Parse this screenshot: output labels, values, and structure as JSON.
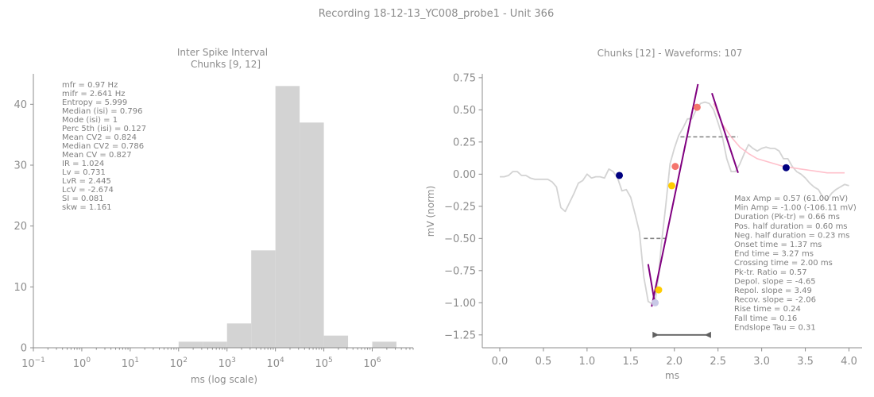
{
  "suptitle": "Recording 18-12-13_YC008_probe1 - Unit 366",
  "chart_data": [
    {
      "type": "bar",
      "title_lines": [
        "Inter Spike Interval",
        "Chunks [9, 12]"
      ],
      "xlabel": "ms (log scale)",
      "ylabel": "",
      "xscale": "log",
      "xlim": [
        0.1,
        7000000
      ],
      "ylim": [
        0,
        45
      ],
      "grid": false,
      "x_ticks": [
        {
          "value": 0.1,
          "base": "10",
          "exp": "−1"
        },
        {
          "value": 1,
          "base": "10",
          "exp": "0"
        },
        {
          "value": 10,
          "base": "10",
          "exp": "1"
        },
        {
          "value": 100,
          "base": "10",
          "exp": "2"
        },
        {
          "value": 1000,
          "base": "10",
          "exp": "3"
        },
        {
          "value": 10000,
          "base": "10",
          "exp": "4"
        },
        {
          "value": 100000,
          "base": "10",
          "exp": "5"
        },
        {
          "value": 1000000,
          "base": "10",
          "exp": "6"
        }
      ],
      "y_ticks": [
        0,
        10,
        20,
        30,
        40
      ],
      "bar_color": "#d3d3d3",
      "bins": [
        {
          "x0": 100,
          "x1": 316,
          "count": 1
        },
        {
          "x0": 316,
          "x1": 1000,
          "count": 1
        },
        {
          "x0": 1000,
          "x1": 3162,
          "count": 4
        },
        {
          "x0": 3162,
          "x1": 10000,
          "count": 16
        },
        {
          "x0": 10000,
          "x1": 31623,
          "count": 43
        },
        {
          "x0": 31623,
          "x1": 100000,
          "count": 37
        },
        {
          "x0": 100000,
          "x1": 316228,
          "count": 2
        },
        {
          "x0": 1000000,
          "x1": 3162278,
          "count": 1
        }
      ],
      "stats": [
        "mfr = 0.97 Hz",
        "mifr = 2.641 Hz",
        "Entropy = 5.999",
        "Median (isi) = 0.796",
        "Mode (isi) = 1",
        "Perc 5th (isi) = 0.127",
        "Mean CV2 = 0.824",
        "Median CV2 = 0.786",
        "Mean CV = 0.827",
        "IR = 1.024",
        "Lv = 0.731",
        "LvR = 2.445",
        "LcV = -2.674",
        "SI = 0.081",
        "skw = 1.161"
      ]
    },
    {
      "type": "line",
      "title": "Chunks [12] - Waveforms: 107",
      "xlabel": "ms",
      "ylabel": "mV (norm)",
      "xlim": [
        -0.2,
        4.15
      ],
      "ylim": [
        -1.35,
        0.78
      ],
      "grid": false,
      "x_ticks": [
        "0.0",
        "0.5",
        "1.0",
        "1.5",
        "2.0",
        "2.5",
        "3.0",
        "3.5",
        "4.0"
      ],
      "y_ticks": [
        "0.75",
        "0.50",
        "0.25",
        "0.00",
        "−0.25",
        "−0.50",
        "−0.75",
        "−1.00",
        "−1.25"
      ],
      "colors": {
        "waveform": "#d3d3d3",
        "fit": "#ffc0cb",
        "slope": "#800080",
        "navy": "#000080",
        "salmon": "#f4756d",
        "gold": "#ffcc00",
        "guide": "#808080",
        "arrow": "#606060"
      },
      "series": [
        {
          "role": "waveform",
          "x": [
            0.0,
            0.05,
            0.1,
            0.15,
            0.2,
            0.25,
            0.3,
            0.35,
            0.4,
            0.45,
            0.5,
            0.55,
            0.6,
            0.65,
            0.7,
            0.75,
            0.8,
            0.85,
            0.9,
            0.95,
            1.0,
            1.05,
            1.1,
            1.15,
            1.2,
            1.25,
            1.3,
            1.35,
            1.4,
            1.45,
            1.5,
            1.55,
            1.6,
            1.65,
            1.7,
            1.75,
            1.78,
            1.82,
            1.85,
            1.9,
            1.95,
            2.0,
            2.05,
            2.1,
            2.15,
            2.2,
            2.25,
            2.3,
            2.35,
            2.4,
            2.45,
            2.5,
            2.55,
            2.6,
            2.65,
            2.7,
            2.75,
            2.8,
            2.85,
            2.9,
            2.95,
            3.0,
            3.05,
            3.1,
            3.15,
            3.2,
            3.25,
            3.3,
            3.35,
            3.4,
            3.45,
            3.5,
            3.55,
            3.6,
            3.65,
            3.7,
            3.75,
            3.8,
            3.85,
            3.9,
            3.95,
            4.0
          ],
          "y": [
            -0.02,
            -0.02,
            -0.01,
            0.02,
            0.02,
            -0.01,
            -0.01,
            -0.03,
            -0.04,
            -0.04,
            -0.04,
            -0.04,
            -0.06,
            -0.1,
            -0.26,
            -0.29,
            -0.22,
            -0.15,
            -0.07,
            -0.05,
            0.0,
            -0.03,
            -0.02,
            -0.02,
            -0.03,
            0.04,
            0.02,
            -0.03,
            -0.13,
            -0.12,
            -0.18,
            -0.31,
            -0.45,
            -0.8,
            -0.99,
            -1.01,
            -0.99,
            -0.78,
            -0.55,
            -0.25,
            0.08,
            0.2,
            0.3,
            0.36,
            0.43,
            0.43,
            0.5,
            0.55,
            0.56,
            0.55,
            0.5,
            0.4,
            0.29,
            0.12,
            0.02,
            0.02,
            0.08,
            0.16,
            0.23,
            0.2,
            0.18,
            0.2,
            0.21,
            0.2,
            0.2,
            0.18,
            0.12,
            0.12,
            0.06,
            0.02,
            0.0,
            -0.03,
            -0.07,
            -0.1,
            -0.12,
            -0.18,
            -0.2,
            -0.15,
            -0.12,
            -0.1,
            -0.08,
            -0.09
          ]
        },
        {
          "role": "fit",
          "x": [
            2.45,
            2.55,
            2.65,
            2.75,
            2.85,
            2.95,
            3.05,
            3.15,
            3.25,
            3.35,
            3.45,
            3.55,
            3.65,
            3.75,
            3.85,
            3.95
          ],
          "y": [
            0.55,
            0.39,
            0.29,
            0.21,
            0.16,
            0.12,
            0.1,
            0.08,
            0.06,
            0.05,
            0.04,
            0.03,
            0.02,
            0.01,
            0.01,
            0.01
          ]
        }
      ],
      "slopes": [
        {
          "x": [
            1.7,
            1.78
          ],
          "y": [
            -0.7,
            -1.02
          ]
        },
        {
          "x": [
            1.74,
            2.27
          ],
          "y": [
            -1.03,
            0.7
          ]
        },
        {
          "x": [
            2.43,
            2.73
          ],
          "y": [
            0.63,
            0.01
          ]
        }
      ],
      "half_lines": [
        {
          "x": [
            1.65,
            1.9
          ],
          "y": [
            -0.5,
            -0.5
          ]
        },
        {
          "x": [
            2.07,
            2.73
          ],
          "y": [
            0.29,
            0.29
          ]
        }
      ],
      "duration_arrow": {
        "x": [
          1.75,
          2.42
        ],
        "y": -1.25
      },
      "markers": [
        {
          "x": 1.37,
          "y": -0.01,
          "color": "navy"
        },
        {
          "x": 3.28,
          "y": 0.05,
          "color": "navy"
        },
        {
          "x": 2.26,
          "y": 0.52,
          "color": "salmon"
        },
        {
          "x": 2.01,
          "y": 0.06,
          "color": "salmon"
        },
        {
          "x": 1.97,
          "y": -0.09,
          "color": "gold"
        },
        {
          "x": 1.82,
          "y": -0.9,
          "color": "gold"
        },
        {
          "x": 1.78,
          "y": -1.0,
          "color": "lavender"
        }
      ],
      "stats": [
        "Max Amp = 0.57 (61.00 mV)",
        "Min Amp = -1.00 (-106.11 mV)",
        "Duration (Pk-tr) = 0.66 ms",
        "Pos. half duration = 0.60 ms",
        "Neg. half duration = 0.23 ms",
        "Onset time = 1.37 ms",
        "End time = 3.27 ms",
        "Crossing time = 2.00 ms",
        "Pk-tr. Ratio = 0.57",
        "Depol. slope = -4.65",
        "Repol. slope = 3.49",
        "Recov. slope = -2.06",
        "Rise time = 0.24",
        "Fall time = 0.16",
        "Endslope Tau = 0.31"
      ]
    }
  ]
}
